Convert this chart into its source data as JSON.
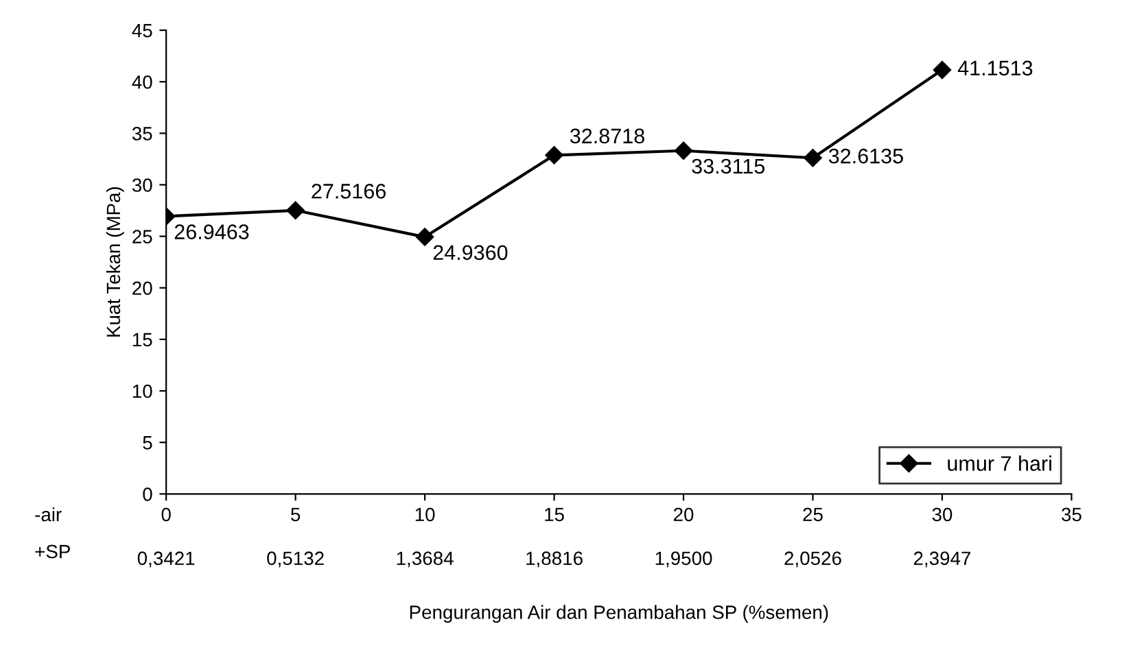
{
  "chart_data": {
    "type": "line",
    "xlabel": "Pengurangan Air dan Penambahan SP (%semen)",
    "ylabel": "Kuat Tekan (MPa)",
    "x": [
      0,
      5,
      10,
      15,
      20,
      25,
      30
    ],
    "series": [
      {
        "name": "umur 7 hari",
        "color": "#000000",
        "values": [
          26.9463,
          27.5166,
          24.936,
          32.8718,
          33.3115,
          32.6135,
          41.1513
        ]
      }
    ],
    "value_labels": [
      "26.9463",
      "27.5166",
      "24.9360",
      "32.8718",
      "33.3115",
      "32.6135",
      "41.1513"
    ],
    "xlim": [
      0,
      35
    ],
    "xticks": [
      0,
      5,
      10,
      15,
      20,
      25,
      30,
      35
    ],
    "ylim": [
      0,
      45
    ],
    "yticks": [
      0,
      5,
      10,
      15,
      20,
      25,
      30,
      35,
      40,
      45
    ],
    "annotations": [
      "-air",
      "+SP",
      "0,3421",
      "0,5132",
      "1,3684",
      "1,8816",
      "1,9500",
      "2,0526",
      "2,3947"
    ],
    "marker": "diamond",
    "line_style": "solid",
    "legend": "bottom right",
    "grid": false
  }
}
